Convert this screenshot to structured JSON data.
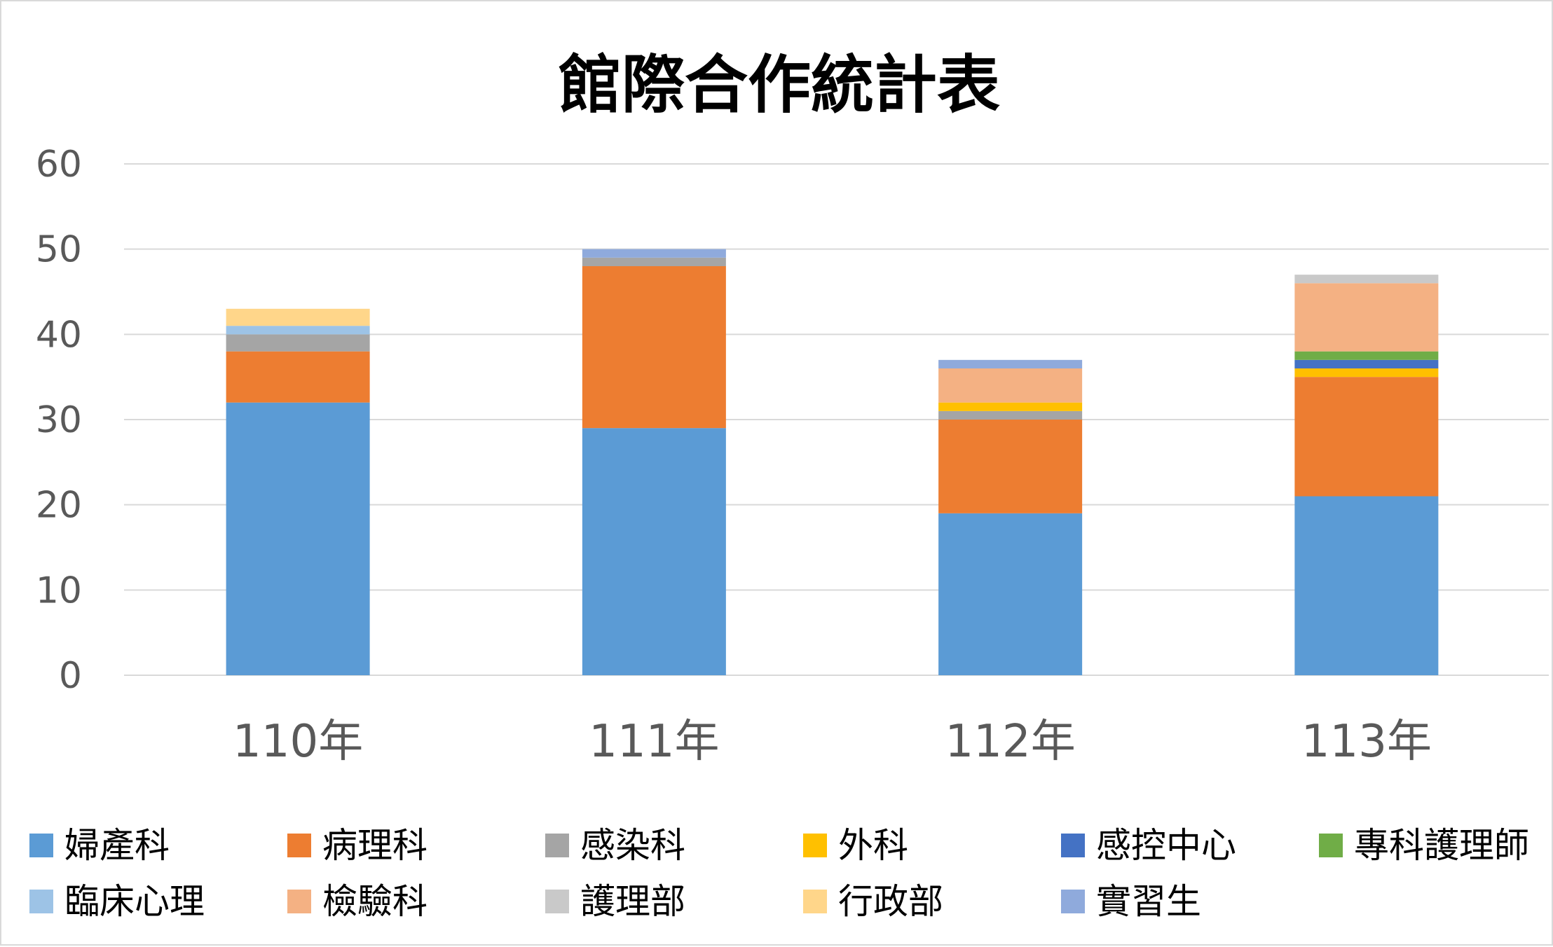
{
  "chart_data": {
    "type": "bar",
    "stacked": true,
    "title": "館際合作統計表",
    "xlabel": "",
    "ylabel": "",
    "ylim": [
      0,
      60
    ],
    "yticks": [
      0,
      10,
      20,
      30,
      40,
      50,
      60
    ],
    "grid": true,
    "legend_position": "bottom",
    "categories": [
      "110年",
      "111年",
      "112年",
      "113年"
    ],
    "series": [
      {
        "name": "婦產科",
        "color": "#5B9BD5",
        "values": [
          32,
          29,
          19,
          21
        ]
      },
      {
        "name": "病理科",
        "color": "#ED7D31",
        "values": [
          6,
          19,
          11,
          14
        ]
      },
      {
        "name": "感染科",
        "color": "#A5A5A5",
        "values": [
          2,
          1,
          1,
          0
        ]
      },
      {
        "name": "外科",
        "color": "#FFC000",
        "values": [
          0,
          0,
          1,
          1
        ]
      },
      {
        "name": "感控中心",
        "color": "#4472C4",
        "values": [
          0,
          0,
          0,
          1
        ]
      },
      {
        "name": "專科護理師",
        "color": "#70AD47",
        "values": [
          0,
          0,
          0,
          1
        ]
      },
      {
        "name": "臨床心理",
        "color": "#9DC3E6",
        "values": [
          1,
          0,
          0,
          0
        ]
      },
      {
        "name": "檢驗科",
        "color": "#F4B183",
        "values": [
          0,
          0,
          4,
          8
        ]
      },
      {
        "name": "護理部",
        "color": "#C9C9C9",
        "values": [
          0,
          0,
          0,
          1
        ]
      },
      {
        "name": "行政部",
        "color": "#FFD68A",
        "values": [
          2,
          0,
          0,
          0
        ]
      },
      {
        "name": "實習生",
        "color": "#8FAADC",
        "values": [
          0,
          1,
          1,
          0
        ]
      }
    ]
  }
}
